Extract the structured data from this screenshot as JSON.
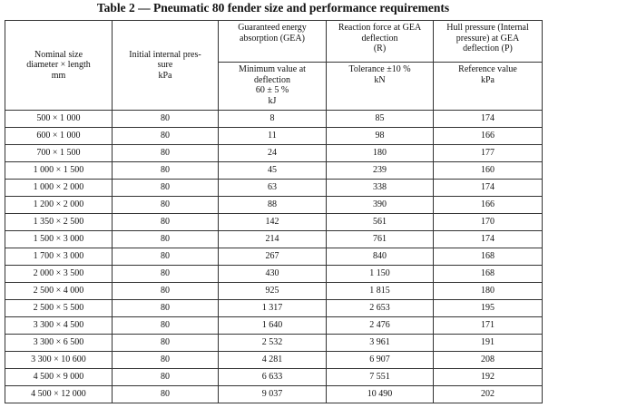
{
  "title": "Table 2 — Pneumatic 80 fender size and performance requirements",
  "table": {
    "header": {
      "nominal": "Nominal size\ndiameter × length\nmm",
      "pressure": "Initial internal pres-\nsure\nkPa",
      "gea": "Guaranteed energy\nabsorption (GEA)",
      "reaction": "Reaction force at GEA\ndeflection\n(R)",
      "hull": "Hull pressure (Internal\npressure) at GEA\ndeflection (P)",
      "gea_sub": "Minimum value at\ndeflection\n60 ± 5 %\nkJ",
      "reaction_sub": "Tolerance ±10 %\nkN",
      "hull_sub": "Reference value\nkPa"
    },
    "rows": [
      [
        "500 × 1 000",
        "80",
        "8",
        "85",
        "174"
      ],
      [
        "600 × 1 000",
        "80",
        "11",
        "98",
        "166"
      ],
      [
        "700 × 1 500",
        "80",
        "24",
        "180",
        "177"
      ],
      [
        "1 000 × 1 500",
        "80",
        "45",
        "239",
        "160"
      ],
      [
        "1 000 × 2 000",
        "80",
        "63",
        "338",
        "174"
      ],
      [
        "1 200 × 2 000",
        "80",
        "88",
        "390",
        "166"
      ],
      [
        "1 350 × 2 500",
        "80",
        "142",
        "561",
        "170"
      ],
      [
        "1 500 × 3 000",
        "80",
        "214",
        "761",
        "174"
      ],
      [
        "1 700 × 3 000",
        "80",
        "267",
        "840",
        "168"
      ],
      [
        "2 000 × 3 500",
        "80",
        "430",
        "1 150",
        "168"
      ],
      [
        "2 500 × 4 000",
        "80",
        "925",
        "1 815",
        "180"
      ],
      [
        "2 500 × 5 500",
        "80",
        "1 317",
        "2 653",
        "195"
      ],
      [
        "3 300 × 4 500",
        "80",
        "1 640",
        "2 476",
        "171"
      ],
      [
        "3 300 × 6 500",
        "80",
        "2 532",
        "3 961",
        "191"
      ],
      [
        "3 300 × 10 600",
        "80",
        "4 281",
        "6 907",
        "208"
      ],
      [
        "4 500 × 9 000",
        "80",
        "6 633",
        "7 551",
        "192"
      ],
      [
        "4 500 × 12 000",
        "80",
        "9 037",
        "10 490",
        "202"
      ]
    ]
  }
}
